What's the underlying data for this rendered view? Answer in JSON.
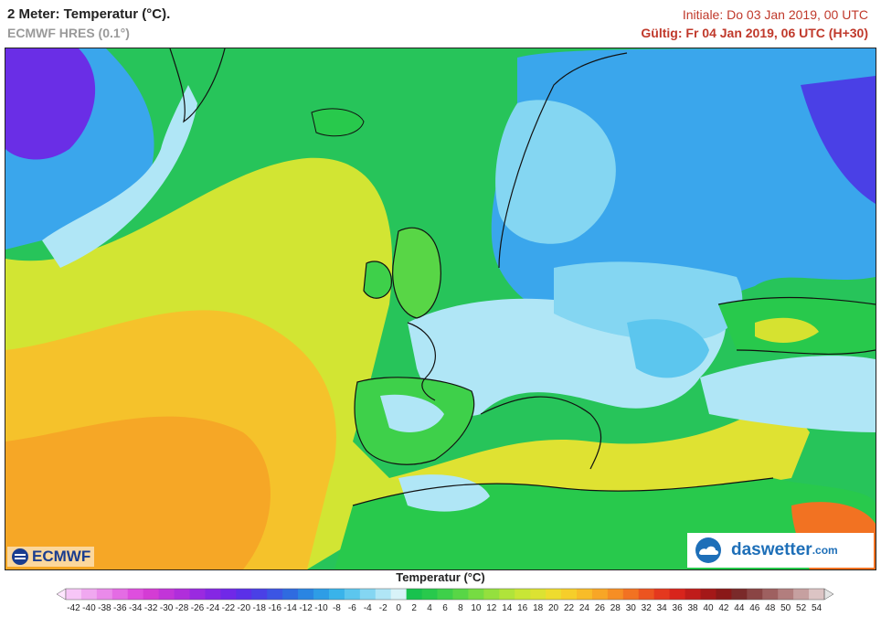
{
  "header": {
    "title": "2 Meter: Temperatur (°C).",
    "model": "ECMWF HRES (0.1°)",
    "init": "Initiale: Do 03 Jan 2019, 00 UTC",
    "valid": "Gültig: Fr 04 Jan 2019, 06 UTC (H+30)"
  },
  "logos": {
    "left": "ECMWF",
    "right_main": "daswetter",
    "right_tld": ".com"
  },
  "legend": {
    "title": "Temperatur (°C)",
    "ticks": [
      -42,
      -40,
      -38,
      -36,
      -34,
      -32,
      -30,
      -28,
      -26,
      -24,
      -22,
      -20,
      -18,
      -16,
      -14,
      -12,
      -10,
      -8,
      -6,
      -4,
      -2,
      0,
      2,
      4,
      6,
      8,
      10,
      12,
      14,
      16,
      18,
      20,
      22,
      24,
      26,
      28,
      30,
      32,
      34,
      36,
      38,
      40,
      42,
      44,
      46,
      48,
      50,
      52,
      54
    ],
    "colors": [
      "#f7c6f7",
      "#f0a8f0",
      "#ea8aea",
      "#e46ce4",
      "#de4ede",
      "#d43cd4",
      "#c235d8",
      "#b02edb",
      "#9a2ae0",
      "#8527e4",
      "#7028e8",
      "#5b30e8",
      "#4a40e6",
      "#3c55e4",
      "#2f6be0",
      "#2a85e2",
      "#2e9de6",
      "#39b3ea",
      "#5cc6ee",
      "#84d6f2",
      "#b0e6f6",
      "#d8f3f8",
      "#18c24e",
      "#28c94c",
      "#3ed04a",
      "#58d646",
      "#76dc42",
      "#94e03e",
      "#b0e43a",
      "#c8e636",
      "#dce232",
      "#eedc2e",
      "#f6ce2a",
      "#f8bc28",
      "#f8a626",
      "#f68e24",
      "#f27222",
      "#ec5420",
      "#e4381e",
      "#d8241c",
      "#c01c1a",
      "#a41818",
      "#8a1818",
      "#7a2a2a",
      "#8a4444",
      "#9e6060",
      "#b27e7e",
      "#c6a0a0",
      "#dcc4c4"
    ],
    "under_color": "#ffe6ff",
    "over_color": "#e4e4e4"
  },
  "colors": {
    "ocean_green": "#27c45a",
    "ocean_yellow": "#d6e62f",
    "ocean_orange": "#f6b92a",
    "cold_blue": "#3aa6ec",
    "freezing_white": "#d8f3f8",
    "accent_red": "#c0392b"
  }
}
